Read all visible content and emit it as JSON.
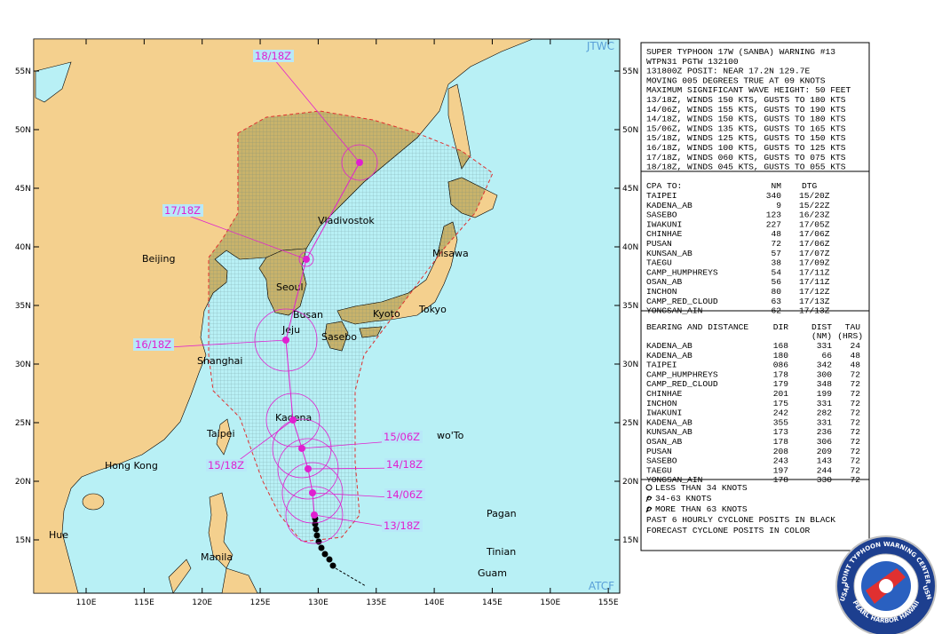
{
  "map": {
    "corner_labels": {
      "top_right": "JTWC",
      "bottom_right": "ATCF"
    },
    "lat_labels": [
      "55N",
      "50N",
      "45N",
      "40N",
      "35N",
      "30N",
      "25N",
      "20N",
      "15N"
    ],
    "lon_labels": [
      "110E",
      "115E",
      "120E",
      "125E",
      "130E",
      "135E",
      "140E",
      "145E",
      "150E",
      "155E"
    ],
    "places": [
      "Beijing",
      "Vladivostok",
      "Seoul",
      "Busan",
      "Jeju",
      "Sasebo",
      "Shanghai",
      "Kyoto",
      "Tokyo",
      "Misawa",
      "Kadena",
      "Taipei",
      "Hong Kong",
      "wo'To",
      "Pagan",
      "Tinian",
      "Guam",
      "Manila",
      "Hue"
    ],
    "forecast_labels": [
      "18/18Z",
      "17/18Z",
      "16/18Z",
      "15/18Z",
      "15/06Z",
      "14/18Z",
      "14/06Z",
      "13/18Z"
    ]
  },
  "warning": {
    "lines": [
      "SUPER TYPHOON 17W (SANBA) WARNING #13",
      "WTPN31 PGTW 132100",
      "131800Z POSIT: NEAR 17.2N 129.7E",
      "MOVING 005 DEGREES TRUE AT 09 KNOTS",
      "MAXIMUM SIGNIFICANT WAVE HEIGHT: 50 FEET",
      "13/18Z, WINDS 150 KTS, GUSTS TO 180 KTS",
      "14/06Z, WINDS 155 KTS, GUSTS TO 190 KTS",
      "14/18Z, WINDS 150 KTS, GUSTS TO 180 KTS",
      "15/06Z, WINDS 135 KTS, GUSTS TO 165 KTS",
      "15/18Z, WINDS 125 KTS, GUSTS TO 150 KTS",
      "16/18Z, WINDS 100 KTS, GUSTS TO 125 KTS",
      "17/18Z, WINDS 060 KTS, GUSTS TO 075 KTS",
      "18/18Z, WINDS 045 KTS, GUSTS TO 055 KTS"
    ]
  },
  "cpa": {
    "header": [
      "CPA TO:",
      "NM",
      "DTG"
    ],
    "rows": [
      [
        "TAIPEI",
        "340",
        "15/20Z"
      ],
      [
        "KADENA_AB",
        "9",
        "15/22Z"
      ],
      [
        "SASEBO",
        "123",
        "16/23Z"
      ],
      [
        "IWAKUNI",
        "227",
        "17/05Z"
      ],
      [
        "CHINHAE",
        "48",
        "17/06Z"
      ],
      [
        "PUSAN",
        "72",
        "17/06Z"
      ],
      [
        "KUNSAN_AB",
        "57",
        "17/07Z"
      ],
      [
        "TAEGU",
        "38",
        "17/09Z"
      ],
      [
        "CAMP_HUMPHREYS",
        "54",
        "17/11Z"
      ],
      [
        "OSAN_AB",
        "56",
        "17/11Z"
      ],
      [
        "INCHON",
        "80",
        "17/12Z"
      ],
      [
        "CAMP_RED_CLOUD",
        "63",
        "17/13Z"
      ],
      [
        "YONGSAN_AIN",
        "62",
        "17/13Z"
      ]
    ]
  },
  "bearing": {
    "header": [
      "BEARING AND DISTANCE",
      "DIR",
      "DIST",
      "TAU"
    ],
    "subheader": [
      "(NM)",
      "(HRS)"
    ],
    "rows": [
      [
        "KADENA_AB",
        "168",
        "331",
        "24"
      ],
      [
        "KADENA_AB",
        "180",
        "66",
        "48"
      ],
      [
        "TAIPEI",
        "086",
        "342",
        "48"
      ],
      [
        "CAMP_HUMPHREYS",
        "178",
        "300",
        "72"
      ],
      [
        "CAMP_RED_CLOUD",
        "179",
        "348",
        "72"
      ],
      [
        "CHINHAE",
        "201",
        "199",
        "72"
      ],
      [
        "INCHON",
        "175",
        "331",
        "72"
      ],
      [
        "IWAKUNI",
        "242",
        "282",
        "72"
      ],
      [
        "KADENA_AB",
        "355",
        "331",
        "72"
      ],
      [
        "KUNSAN_AB",
        "173",
        "236",
        "72"
      ],
      [
        "OSAN_AB",
        "178",
        "306",
        "72"
      ],
      [
        "PUSAN",
        "208",
        "209",
        "72"
      ],
      [
        "SASEBO",
        "243",
        "143",
        "72"
      ],
      [
        "TAEGU",
        "197",
        "244",
        "72"
      ],
      [
        "YONGSAN_AIN",
        "178",
        "330",
        "72"
      ]
    ]
  },
  "legend": [
    "LESS THAN 34 KNOTS",
    "34-63 KNOTS",
    "MORE THAN 63 KNOTS",
    "PAST 6 HOURLY CYCLONE POSITS IN BLACK",
    "FORECAST CYCLONE POSITS IN COLOR"
  ],
  "logo": {
    "top": "JOINT TYPHOON WARNING CENTER",
    "bottom": "PEARL HARBOR HAWAII",
    "left": "USAF",
    "right": "USN"
  }
}
